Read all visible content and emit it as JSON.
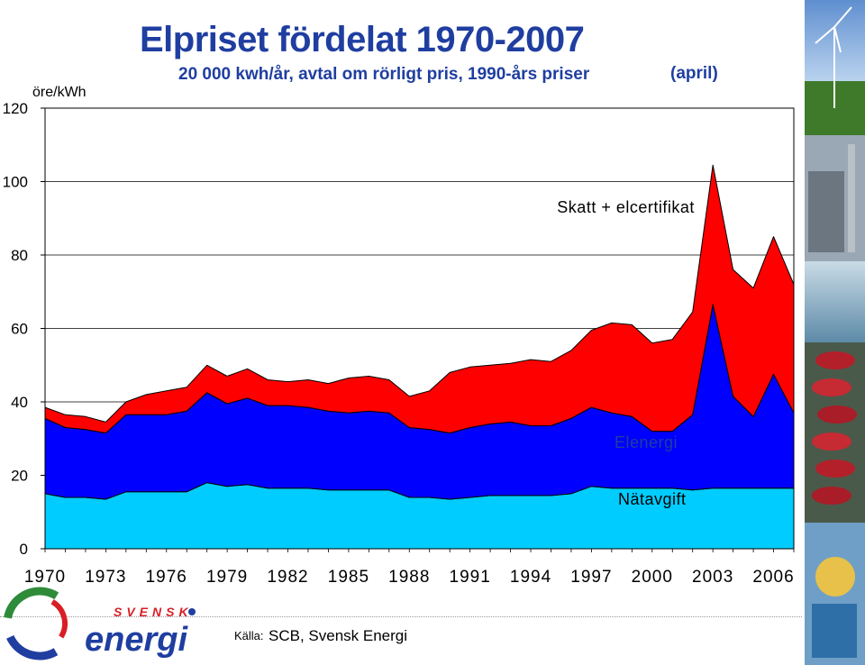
{
  "header": {
    "title": "Elpriset fördelat 1970-2007",
    "subtitle": "20 000 kwh/år, avtal om rörligt pris, 1990-års priser",
    "note": "(april)",
    "unit": "öre/kWh"
  },
  "footer": {
    "source_label": "Källa:",
    "source_text": "SCB, Svensk Energi"
  },
  "logo": {
    "top_text": "SVENSK",
    "main_text": "energi",
    "colors": {
      "red": "#d81f26",
      "blue": "#1f3ea0",
      "green": "#2e8b3a"
    }
  },
  "chart_data": {
    "type": "area",
    "stacked": true,
    "x": [
      1970,
      1971,
      1972,
      1973,
      1974,
      1975,
      1976,
      1977,
      1978,
      1979,
      1980,
      1981,
      1982,
      1983,
      1984,
      1985,
      1986,
      1987,
      1988,
      1989,
      1990,
      1991,
      1992,
      1993,
      1994,
      1995,
      1996,
      1997,
      1998,
      1999,
      2000,
      2001,
      2002,
      2003,
      2004,
      2005,
      2006,
      2007
    ],
    "xticks": [
      1970,
      1973,
      1976,
      1979,
      1982,
      1985,
      1988,
      1991,
      1994,
      1997,
      2000,
      2003,
      2006
    ],
    "yticks": [
      0,
      20,
      40,
      60,
      80,
      100,
      120
    ],
    "ylim": [
      0,
      120
    ],
    "xlim": [
      1970,
      2007
    ],
    "series": [
      {
        "name": "Nätavgift",
        "color": "#00ccff",
        "values": [
          15,
          14,
          14,
          13.5,
          15.5,
          15.5,
          15.5,
          15.5,
          18,
          17,
          17.5,
          16.5,
          16.5,
          16.5,
          16,
          16,
          16,
          16,
          14,
          14,
          13.5,
          14,
          14.5,
          14.5,
          14.5,
          14.5,
          15,
          17,
          16.5,
          16.5,
          16.5,
          16.5,
          16,
          16.5,
          16.5,
          16.5,
          16.5,
          16.5
        ]
      },
      {
        "name": "Elenergi",
        "color": "#0000ff",
        "values": [
          20.5,
          19,
          18.5,
          18,
          21,
          21,
          21,
          22,
          24.5,
          22.5,
          23.5,
          22.5,
          22.5,
          22,
          21.5,
          21,
          21.5,
          21,
          19,
          18.5,
          18,
          19,
          19.5,
          20,
          19,
          19,
          20.5,
          21.5,
          20.5,
          19.5,
          15.5,
          15.5,
          20.5,
          50,
          25,
          19.5,
          31,
          20.5
        ]
      },
      {
        "name": "Skatt + elcertifikat",
        "color": "#ff0000",
        "values": [
          3,
          3.5,
          3.5,
          3,
          3.5,
          5.5,
          6.5,
          6.5,
          7.5,
          7.5,
          8,
          7,
          6.5,
          7.5,
          7.5,
          9.5,
          9.5,
          9,
          8.5,
          10.5,
          16.5,
          16.5,
          16,
          16,
          18,
          17.5,
          18.5,
          21,
          24.5,
          25,
          24,
          25,
          28,
          38,
          34.5,
          35,
          37.5,
          35
        ]
      }
    ]
  }
}
